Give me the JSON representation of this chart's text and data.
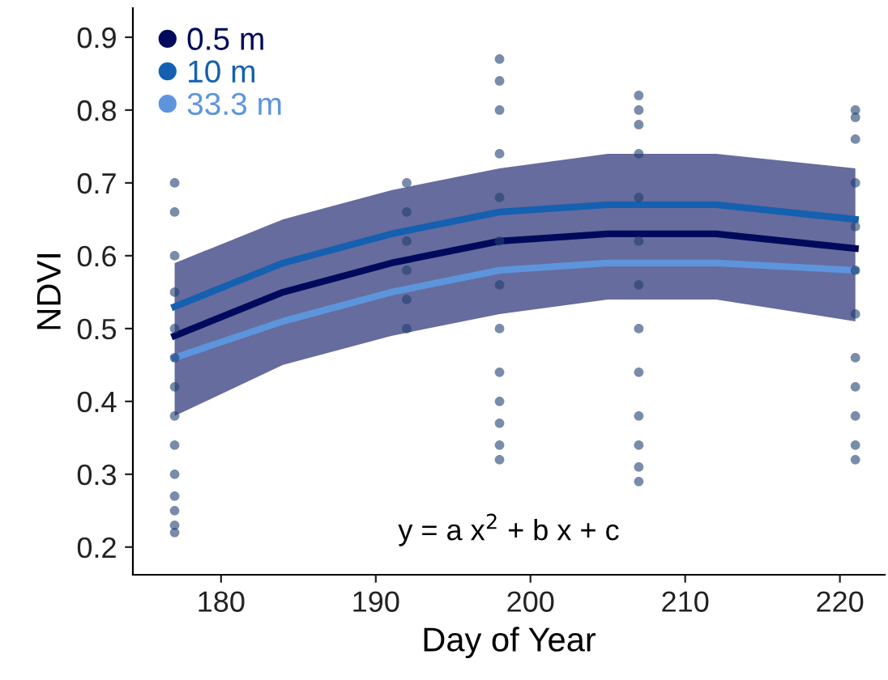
{
  "chart_data": {
    "type": "line",
    "xlabel": "Day of Year",
    "ylabel": "NDVI",
    "xlim": [
      174.3,
      222.9
    ],
    "ylim": [
      0.162,
      0.94
    ],
    "xticks": [
      180,
      190,
      200,
      210,
      220
    ],
    "yticks": [
      0.2,
      0.3,
      0.4,
      0.5,
      0.6,
      0.7,
      0.8,
      0.9
    ],
    "grid": false,
    "legend": "top left",
    "annotations": [
      "y = a x$^{2}$ + b x + c"
    ],
    "series": [
      {
        "type": "scatter",
        "color": "#1f3f70",
        "marker": "circle",
        "x": [
          177,
          177,
          177,
          177,
          177,
          177,
          177,
          177,
          177,
          177,
          177,
          177,
          177,
          177,
          192,
          192,
          192,
          192,
          192,
          192,
          198,
          198,
          198,
          198,
          198,
          198,
          198,
          198,
          198,
          198,
          198,
          198,
          198,
          207,
          207,
          207,
          207,
          207,
          207,
          207,
          207,
          207,
          207,
          207,
          207,
          207,
          221,
          221,
          221,
          221,
          221,
          221,
          221,
          221,
          221,
          221,
          221,
          221
        ],
        "values": [
          0.22,
          0.23,
          0.25,
          0.27,
          0.3,
          0.34,
          0.38,
          0.42,
          0.46,
          0.5,
          0.55,
          0.6,
          0.66,
          0.7,
          0.5,
          0.54,
          0.58,
          0.62,
          0.66,
          0.7,
          0.32,
          0.34,
          0.37,
          0.4,
          0.44,
          0.5,
          0.56,
          0.62,
          0.68,
          0.74,
          0.8,
          0.84,
          0.87,
          0.29,
          0.31,
          0.34,
          0.38,
          0.44,
          0.5,
          0.56,
          0.62,
          0.68,
          0.74,
          0.78,
          0.8,
          0.82,
          0.32,
          0.34,
          0.38,
          0.42,
          0.46,
          0.52,
          0.58,
          0.64,
          0.7,
          0.76,
          0.79,
          0.8
        ]
      },
      {
        "name": "0.5 m",
        "color": "#000a5c",
        "x": [
          177,
          184,
          191,
          198,
          205,
          212,
          221
        ],
        "values": [
          0.49,
          0.55,
          0.59,
          0.62,
          0.63,
          0.63,
          0.61
        ],
        "lower": [
          0.38,
          0.45,
          0.49,
          0.52,
          0.54,
          0.54,
          0.51
        ],
        "upper": [
          0.59,
          0.65,
          0.69,
          0.72,
          0.74,
          0.74,
          0.72
        ]
      },
      {
        "name": "10 m",
        "color": "#1560b0",
        "x": [
          177,
          184,
          191,
          198,
          205,
          212,
          221
        ],
        "values": [
          0.53,
          0.59,
          0.63,
          0.66,
          0.67,
          0.67,
          0.65
        ]
      },
      {
        "name": "33.3 m",
        "color": "#5d95dd",
        "x": [
          177,
          184,
          191,
          198,
          205,
          212,
          221
        ],
        "values": [
          0.46,
          0.51,
          0.55,
          0.58,
          0.59,
          0.59,
          0.58
        ]
      }
    ]
  }
}
